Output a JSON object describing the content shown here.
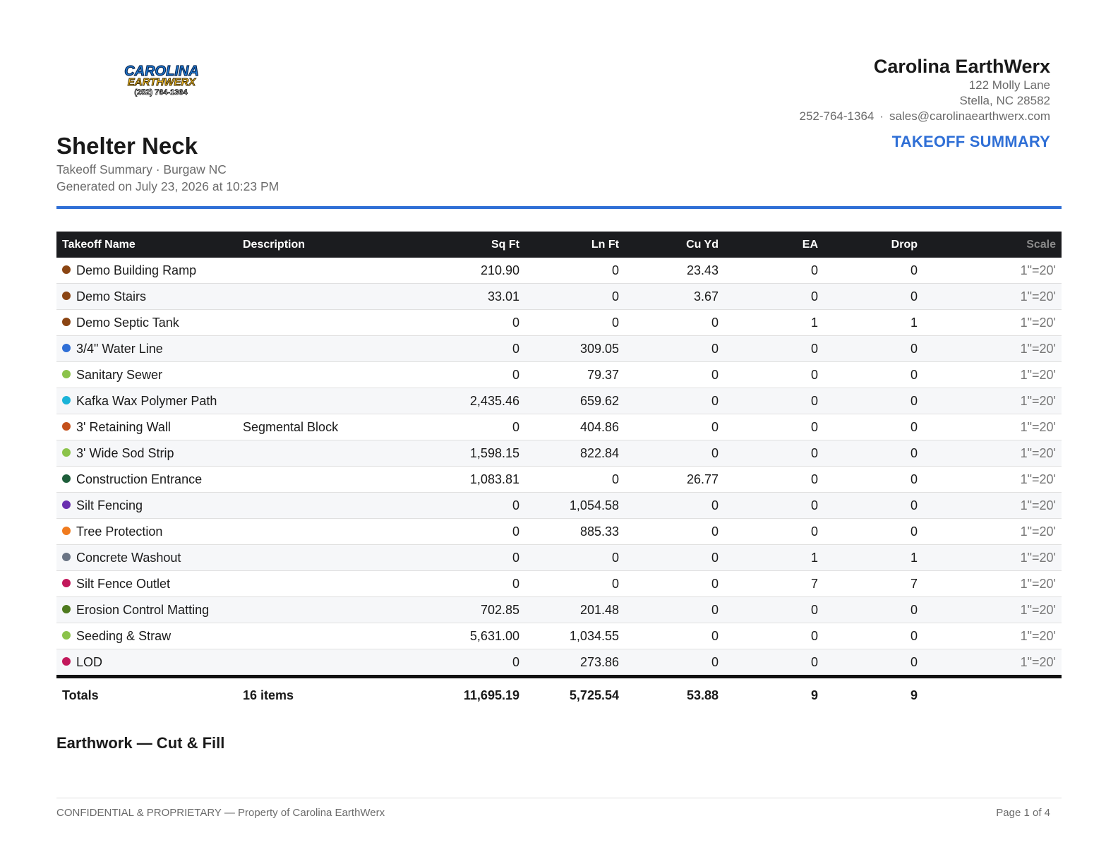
{
  "logo": {
    "line1": "CAROLINA",
    "line2": "EARTHWERX",
    "line3": "(252) 764-1364"
  },
  "company": {
    "name": "Carolina EarthWerx",
    "address1": "122 Molly Lane",
    "address2": "Stella, NC 28582",
    "phone": "252-764-1364",
    "separator": "·",
    "email": "sales@carolinaearthwerx.com"
  },
  "doc_type": "TAKEOFF SUMMARY",
  "title": "Shelter Neck",
  "subtitle": "Takeoff Summary · Burgaw NC",
  "generated": "Generated on July 23, 2026 at 10:23 PM",
  "table": {
    "headers": [
      "Takeoff Name",
      "Description",
      "Sq Ft",
      "Ln Ft",
      "Cu Yd",
      "EA",
      "Drop",
      "Scale"
    ],
    "rows": [
      {
        "name": "Demo Building Ramp",
        "description": "",
        "sqft": "210.90",
        "lnft": "0",
        "cuyd": "23.43",
        "ea": "0",
        "drop": "0",
        "scale": "1\"=20'",
        "color": "#8b4513"
      },
      {
        "name": "Demo Stairs",
        "description": "",
        "sqft": "33.01",
        "lnft": "0",
        "cuyd": "3.67",
        "ea": "0",
        "drop": "0",
        "scale": "1\"=20'",
        "color": "#8b4513"
      },
      {
        "name": "Demo Septic Tank",
        "description": "",
        "sqft": "0",
        "lnft": "0",
        "cuyd": "0",
        "ea": "1",
        "drop": "1",
        "scale": "1\"=20'",
        "color": "#8b4513"
      },
      {
        "name": "3/4\" Water Line",
        "description": "",
        "sqft": "0",
        "lnft": "309.05",
        "cuyd": "0",
        "ea": "0",
        "drop": "0",
        "scale": "1\"=20'",
        "color": "#2f6fd6"
      },
      {
        "name": "Sanitary Sewer",
        "description": "",
        "sqft": "0",
        "lnft": "79.37",
        "cuyd": "0",
        "ea": "0",
        "drop": "0",
        "scale": "1\"=20'",
        "color": "#8bc34a"
      },
      {
        "name": "Kafka Wax Polymer Path",
        "description": "",
        "sqft": "2,435.46",
        "lnft": "659.62",
        "cuyd": "0",
        "ea": "0",
        "drop": "0",
        "scale": "1\"=20'",
        "color": "#1ab3d8"
      },
      {
        "name": "3' Retaining Wall",
        "description": "Segmental Block",
        "sqft": "0",
        "lnft": "404.86",
        "cuyd": "0",
        "ea": "0",
        "drop": "0",
        "scale": "1\"=20'",
        "color": "#c4501a"
      },
      {
        "name": "3' Wide Sod Strip",
        "description": "",
        "sqft": "1,598.15",
        "lnft": "822.84",
        "cuyd": "0",
        "ea": "0",
        "drop": "0",
        "scale": "1\"=20'",
        "color": "#8bc34a"
      },
      {
        "name": "Construction Entrance",
        "description": "",
        "sqft": "1,083.81",
        "lnft": "0",
        "cuyd": "26.77",
        "ea": "0",
        "drop": "0",
        "scale": "1\"=20'",
        "color": "#1e5e3a"
      },
      {
        "name": "Silt Fencing",
        "description": "",
        "sqft": "0",
        "lnft": "1,054.58",
        "cuyd": "0",
        "ea": "0",
        "drop": "0",
        "scale": "1\"=20'",
        "color": "#6a2fb0"
      },
      {
        "name": "Tree Protection",
        "description": "",
        "sqft": "0",
        "lnft": "885.33",
        "cuyd": "0",
        "ea": "0",
        "drop": "0",
        "scale": "1\"=20'",
        "color": "#f07b1e"
      },
      {
        "name": "Concrete Washout",
        "description": "",
        "sqft": "0",
        "lnft": "0",
        "cuyd": "0",
        "ea": "1",
        "drop": "1",
        "scale": "1\"=20'",
        "color": "#6b7585"
      },
      {
        "name": "Silt Fence Outlet",
        "description": "",
        "sqft": "0",
        "lnft": "0",
        "cuyd": "0",
        "ea": "7",
        "drop": "7",
        "scale": "1\"=20'",
        "color": "#c2185b"
      },
      {
        "name": "Erosion Control Matting",
        "description": "",
        "sqft": "702.85",
        "lnft": "201.48",
        "cuyd": "0",
        "ea": "0",
        "drop": "0",
        "scale": "1\"=20'",
        "color": "#4e7a1e"
      },
      {
        "name": "Seeding & Straw",
        "description": "",
        "sqft": "5,631.00",
        "lnft": "1,034.55",
        "cuyd": "0",
        "ea": "0",
        "drop": "0",
        "scale": "1\"=20'",
        "color": "#8bc34a"
      },
      {
        "name": "LOD",
        "description": "",
        "sqft": "0",
        "lnft": "273.86",
        "cuyd": "0",
        "ea": "0",
        "drop": "0",
        "scale": "1\"=20'",
        "color": "#c2185b"
      }
    ],
    "totals": {
      "label": "Totals",
      "count": "16 items",
      "sqft": "11,695.19",
      "lnft": "5,725.54",
      "cuyd": "53.88",
      "ea": "9",
      "drop": "9",
      "scale": ""
    }
  },
  "section_title": "Earthwork — Cut & Fill",
  "footer": {
    "left": "CONFIDENTIAL & PROPRIETARY — Property of Carolina EarthWerx",
    "right": "Page 1 of 4"
  }
}
